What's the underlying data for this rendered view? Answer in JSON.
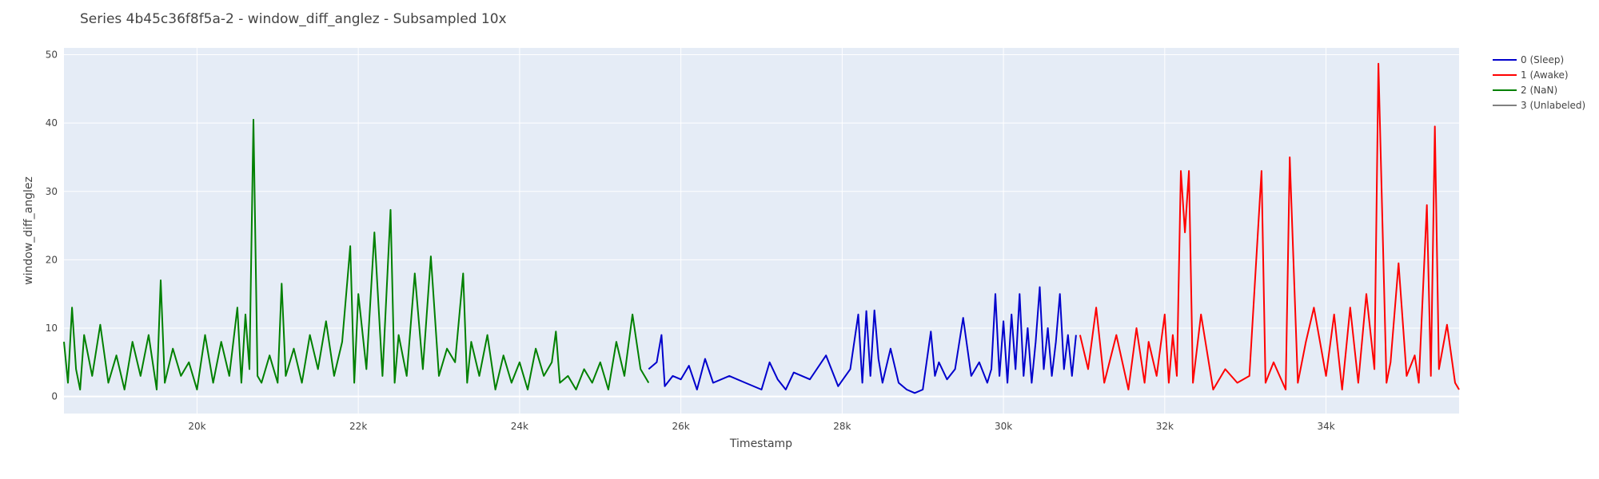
{
  "chart_data": {
    "type": "line",
    "title": "Series 4b45c36f8f5a-2 - window_diff_anglez - Subsampled 10x",
    "xlabel": "Timestamp",
    "ylabel": "window_diff_anglez",
    "xlim": [
      18350,
      35650
    ],
    "ylim": [
      -2.5,
      51
    ],
    "x_ticks": [
      20000,
      22000,
      24000,
      26000,
      28000,
      30000,
      32000,
      34000
    ],
    "x_tick_labels": [
      "20k",
      "22k",
      "24k",
      "26k",
      "28k",
      "30k",
      "32k",
      "34k"
    ],
    "y_ticks": [
      0,
      10,
      20,
      30,
      40,
      50
    ],
    "y_tick_labels": [
      "0",
      "10",
      "20",
      "30",
      "40",
      "50"
    ],
    "grid": true,
    "legend_position": "top-right",
    "series": [
      {
        "name": "0 (Sleep)",
        "color": "#0000cc",
        "x": [
          25600,
          25700,
          25760,
          25800,
          25900,
          26000,
          26100,
          26200,
          26300,
          26400,
          26600,
          26800,
          27000,
          27100,
          27200,
          27300,
          27400,
          27600,
          27800,
          27950,
          28100,
          28200,
          28250,
          28300,
          28350,
          28400,
          28450,
          28500,
          28600,
          28700,
          28800,
          28900,
          29000,
          29100,
          29150,
          29200,
          29300,
          29400,
          29500,
          29600,
          29700,
          29800,
          29850,
          29900,
          29950,
          30000,
          30050,
          30100,
          30150,
          30200,
          30250,
          30300,
          30350,
          30400,
          30450,
          30500,
          30550,
          30600,
          30650,
          30700,
          30750,
          30800,
          30850,
          30900
        ],
        "y": [
          4,
          5,
          9,
          1.5,
          3,
          2.5,
          4.5,
          1,
          5.5,
          2,
          3,
          2,
          1,
          5,
          2.5,
          1,
          3.5,
          2.5,
          6,
          1.5,
          4,
          12,
          2,
          12.5,
          3,
          12.6,
          5.5,
          2,
          7,
          2,
          1,
          0.5,
          1,
          9.5,
          3,
          5,
          2.5,
          4,
          11.5,
          3,
          5,
          2,
          4,
          15,
          3,
          11,
          2,
          12,
          4,
          15,
          3,
          10,
          2,
          8,
          16,
          4,
          10,
          3,
          8,
          15,
          4,
          9,
          3,
          9
        ]
      },
      {
        "name": "1 (Awake)",
        "color": "#ff0000",
        "x": [
          30950,
          31050,
          31150,
          31250,
          31400,
          31550,
          31650,
          31750,
          31800,
          31900,
          32000,
          32050,
          32100,
          32150,
          32200,
          32250,
          32300,
          32350,
          32450,
          32600,
          32750,
          32900,
          33050,
          33200,
          33250,
          33350,
          33500,
          33550,
          33650,
          33750,
          33850,
          34000,
          34100,
          34200,
          34300,
          34400,
          34500,
          34600,
          34650,
          34750,
          34800,
          34900,
          35000,
          35100,
          35150,
          35250,
          35300,
          35350,
          35400,
          35500,
          35600,
          35650
        ],
        "y": [
          9,
          4,
          13,
          2,
          9,
          1,
          10,
          2,
          8,
          3,
          12,
          2,
          9,
          3,
          33,
          24,
          33,
          2,
          12,
          1,
          4,
          2,
          3,
          33,
          2,
          5,
          1,
          35,
          2,
          8,
          13,
          3,
          12,
          1,
          13,
          2,
          15,
          4,
          48.7,
          2,
          5,
          19.5,
          3,
          6,
          2,
          28,
          3,
          39.5,
          4,
          10.5,
          2,
          1
        ]
      },
      {
        "name": "2 (NaN)",
        "color": "#008000",
        "x": [
          18350,
          18400,
          18450,
          18500,
          18550,
          18600,
          18700,
          18800,
          18900,
          19000,
          19100,
          19200,
          19300,
          19400,
          19500,
          19550,
          19600,
          19700,
          19800,
          19900,
          20000,
          20100,
          20200,
          20300,
          20400,
          20500,
          20550,
          20600,
          20650,
          20700,
          20750,
          20800,
          20900,
          21000,
          21050,
          21100,
          21200,
          21300,
          21400,
          21500,
          21600,
          21700,
          21800,
          21900,
          21950,
          22000,
          22100,
          22200,
          22300,
          22400,
          22450,
          22500,
          22600,
          22700,
          22800,
          22900,
          23000,
          23100,
          23200,
          23300,
          23350,
          23400,
          23500,
          23600,
          23700,
          23800,
          23900,
          24000,
          24100,
          24200,
          24300,
          24400,
          24450,
          24500,
          24600,
          24700,
          24800,
          24900,
          25000,
          25100,
          25200,
          25300,
          25400,
          25500,
          25600
        ],
        "y": [
          8,
          2,
          13,
          4,
          1,
          9,
          3,
          10.5,
          2,
          6,
          1,
          8,
          3,
          9,
          1,
          17,
          2,
          7,
          3,
          5,
          1,
          9,
          2,
          8,
          3,
          13,
          2,
          12,
          4,
          40.5,
          3,
          2,
          6,
          2,
          16.5,
          3,
          7,
          2,
          9,
          4,
          11,
          3,
          8,
          22,
          2,
          15,
          4,
          24,
          3,
          27.3,
          2,
          9,
          3,
          18,
          4,
          20.5,
          3,
          7,
          5,
          18,
          2,
          8,
          3,
          9,
          1,
          6,
          2,
          5,
          1,
          7,
          3,
          5,
          9.5,
          2,
          3,
          1,
          4,
          2,
          5,
          1,
          8,
          3,
          12,
          4,
          2
        ]
      },
      {
        "name": "3 (Unlabeled)",
        "color": "#808080",
        "x": [],
        "y": []
      }
    ]
  }
}
